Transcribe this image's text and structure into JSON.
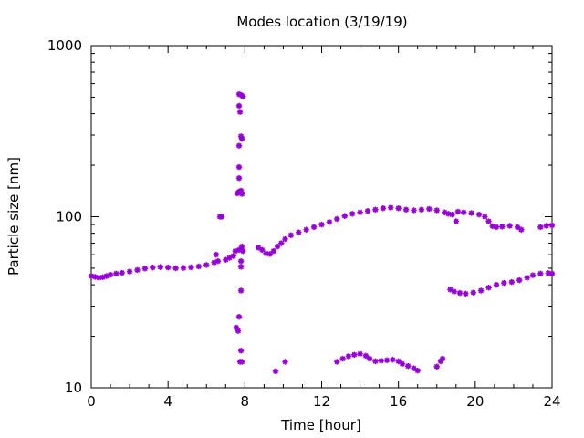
{
  "chart_data": {
    "type": "scatter",
    "title": "Modes location (3/19/19)",
    "xlabel": "Time [hour]",
    "ylabel": "Particle size [nm]",
    "xlim": [
      0,
      24
    ],
    "ylim": [
      10,
      1000
    ],
    "yscale": "log",
    "x_ticks": [
      0,
      4,
      8,
      12,
      16,
      20,
      24
    ],
    "x_tick_labels": [
      "0",
      "4",
      "8",
      "12",
      "16",
      "20",
      "24"
    ],
    "y_ticks": [
      10,
      100,
      1000
    ],
    "y_tick_labels": [
      "10",
      "100",
      "1000"
    ],
    "grid": false,
    "legend": "none",
    "marker_color": "#9400D3",
    "series": [
      {
        "points": [
          [
            0.0,
            45
          ],
          [
            0.2,
            44.5
          ],
          [
            0.4,
            44
          ],
          [
            0.6,
            44.3
          ],
          [
            0.8,
            45
          ],
          [
            1.0,
            45.8
          ],
          [
            1.3,
            46.5
          ],
          [
            1.6,
            47
          ],
          [
            2.0,
            47.8
          ],
          [
            2.4,
            48.8
          ],
          [
            2.8,
            49.8
          ],
          [
            3.2,
            50.5
          ],
          [
            3.6,
            50.8
          ],
          [
            4.0,
            50.5
          ],
          [
            4.4,
            50
          ],
          [
            4.8,
            50.2
          ],
          [
            5.2,
            50.6
          ],
          [
            5.6,
            51.2
          ],
          [
            6.0,
            52.2
          ],
          [
            6.4,
            54
          ],
          [
            6.6,
            55
          ],
          [
            6.5,
            60
          ],
          [
            6.7,
            100
          ],
          [
            6.8,
            100
          ],
          [
            7.0,
            56
          ],
          [
            7.2,
            57.5
          ],
          [
            7.4,
            59
          ],
          [
            7.5,
            63
          ],
          [
            7.7,
            64
          ],
          [
            7.9,
            63
          ],
          [
            7.7,
            520
          ],
          [
            7.8,
            515
          ],
          [
            7.9,
            505
          ],
          [
            7.7,
            445
          ],
          [
            7.75,
            410
          ],
          [
            7.8,
            295
          ],
          [
            7.85,
            285
          ],
          [
            7.7,
            260
          ],
          [
            7.7,
            195
          ],
          [
            7.7,
            168
          ],
          [
            7.6,
            137
          ],
          [
            7.7,
            140
          ],
          [
            7.8,
            142
          ],
          [
            7.85,
            136
          ],
          [
            7.85,
            67
          ],
          [
            7.8,
            55
          ],
          [
            7.8,
            51
          ],
          [
            7.8,
            37
          ],
          [
            7.7,
            26
          ],
          [
            7.55,
            22.5
          ],
          [
            7.65,
            21.5
          ],
          [
            7.8,
            16.5
          ],
          [
            7.75,
            14.2
          ],
          [
            7.85,
            14.2
          ],
          [
            8.7,
            66
          ],
          [
            8.9,
            64
          ],
          [
            9.1,
            61
          ],
          [
            9.3,
            60.5
          ],
          [
            9.5,
            63
          ],
          [
            9.7,
            67
          ],
          [
            9.9,
            70
          ],
          [
            10.1,
            74
          ],
          [
            10.4,
            78
          ],
          [
            10.8,
            81
          ],
          [
            11.2,
            84
          ],
          [
            11.6,
            87
          ],
          [
            12.0,
            90
          ],
          [
            12.4,
            93
          ],
          [
            12.8,
            97
          ],
          [
            13.2,
            101
          ],
          [
            13.6,
            104
          ],
          [
            14.0,
            106
          ],
          [
            14.4,
            108
          ],
          [
            14.8,
            110
          ],
          [
            15.2,
            112
          ],
          [
            15.6,
            113
          ],
          [
            16.0,
            112
          ],
          [
            16.4,
            110
          ],
          [
            16.8,
            109
          ],
          [
            17.2,
            110
          ],
          [
            17.6,
            111
          ],
          [
            18.0,
            109
          ],
          [
            18.4,
            106
          ],
          [
            18.6,
            104
          ],
          [
            18.8,
            103
          ],
          [
            19.0,
            94
          ],
          [
            19.1,
            107
          ],
          [
            19.4,
            106
          ],
          [
            19.8,
            105
          ],
          [
            20.2,
            103
          ],
          [
            20.5,
            100
          ],
          [
            20.7,
            94
          ],
          [
            20.9,
            88
          ],
          [
            21.1,
            87
          ],
          [
            21.4,
            87.5
          ],
          [
            21.8,
            88.5
          ],
          [
            22.2,
            87
          ],
          [
            22.4,
            84
          ],
          [
            23.4,
            87
          ],
          [
            23.7,
            88.5
          ],
          [
            24.0,
            89
          ],
          [
            18.7,
            37.5
          ],
          [
            18.9,
            36.5
          ],
          [
            19.2,
            35.8
          ],
          [
            19.5,
            35.5
          ],
          [
            19.9,
            36
          ],
          [
            20.3,
            37
          ],
          [
            20.7,
            38.5
          ],
          [
            21.1,
            40
          ],
          [
            21.5,
            41
          ],
          [
            21.9,
            41.5
          ],
          [
            22.3,
            42.5
          ],
          [
            22.7,
            44
          ],
          [
            23.0,
            45.5
          ],
          [
            23.4,
            46.5
          ],
          [
            23.8,
            46.8
          ],
          [
            24.0,
            46.5
          ],
          [
            9.6,
            12.5
          ],
          [
            10.1,
            14.2
          ],
          [
            12.8,
            14.2
          ],
          [
            13.1,
            14.8
          ],
          [
            13.4,
            15.3
          ],
          [
            13.7,
            15.6
          ],
          [
            14.0,
            15.8
          ],
          [
            14.3,
            15.4
          ],
          [
            14.5,
            14.8
          ],
          [
            14.8,
            14.3
          ],
          [
            15.1,
            14.4
          ],
          [
            15.4,
            14.5
          ],
          [
            15.7,
            14.6
          ],
          [
            16.0,
            14.3
          ],
          [
            16.2,
            13.8
          ],
          [
            16.5,
            13.4
          ],
          [
            16.8,
            13.0
          ],
          [
            17.0,
            12.6
          ],
          [
            18.0,
            13.3
          ],
          [
            18.2,
            14.3
          ],
          [
            18.3,
            14.8
          ]
        ]
      }
    ]
  }
}
